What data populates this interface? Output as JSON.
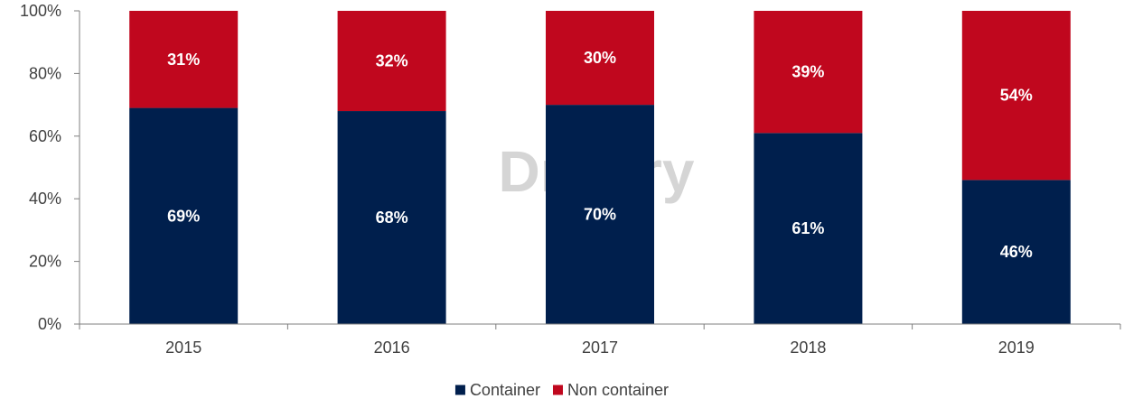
{
  "watermark": "Drewry",
  "colors": {
    "container": "#001f4d",
    "non_container": "#c0071e",
    "axis": "#7f7f7f",
    "text": "#404040"
  },
  "chart_data": {
    "type": "bar",
    "stacked": true,
    "categories": [
      "2015",
      "2016",
      "2017",
      "2018",
      "2019"
    ],
    "series": [
      {
        "name": "Container",
        "values": [
          69,
          68,
          70,
          61,
          46
        ],
        "labels": [
          "69%",
          "68%",
          "70%",
          "61%",
          "46%"
        ]
      },
      {
        "name": "Non container",
        "values": [
          31,
          32,
          30,
          39,
          54
        ],
        "labels": [
          "31%",
          "32%",
          "30%",
          "39%",
          "54%"
        ]
      }
    ],
    "ylim": [
      0,
      100
    ],
    "yticks": [
      0,
      20,
      40,
      60,
      80,
      100
    ],
    "ytick_labels": [
      "0%",
      "20%",
      "40%",
      "60%",
      "80%",
      "100%"
    ],
    "grid": false,
    "legend_position": "bottom"
  }
}
